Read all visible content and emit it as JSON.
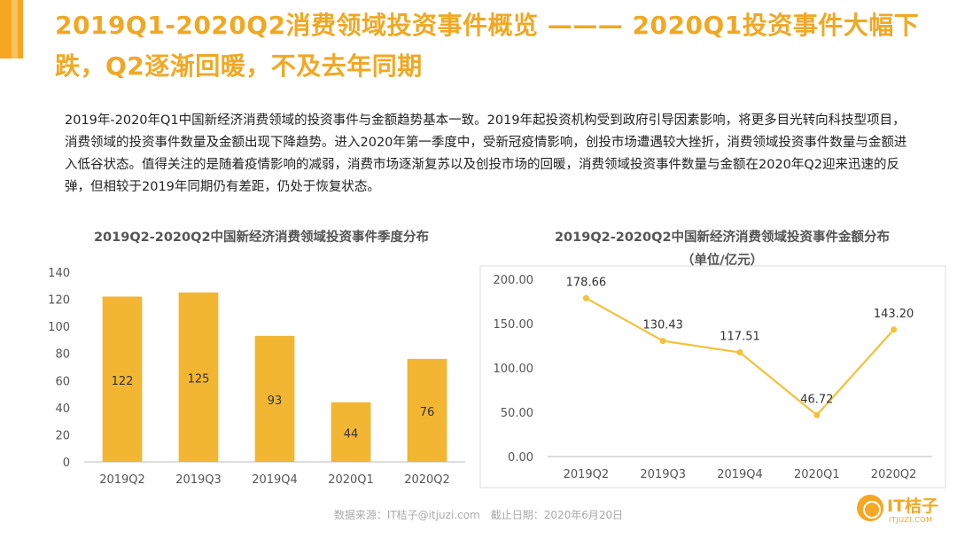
{
  "header": {
    "title": "2019Q1-2020Q2消费领域投资事件概览 ——— 2020Q1投资事件大幅下跌，Q2逐渐回暖，不及去年同期"
  },
  "description": "2019年-2020年Q1中国新经济消费领域的投资事件与金额趋势基本一致。2019年起投资机构受到政府引导因素影响，将更多目光转向科技型项目，消费领域的投资事件数量及金额出现下降趋势。进入2020年第一季度中，受新冠疫情影响，创投市场遭遇较大挫折，消费领域投资事件数量与金额进入低谷状态。值得关注的是随着疫情影响的减弱，消费市场逐渐复苏以及创投市场的回暖，消费领域投资事件数量与金额在2020年Q2迎来迅速的反弹，但相较于2019年同期仍有差距，仍处于恢复状态。",
  "chart_data": [
    {
      "type": "bar",
      "title": "2019Q2-2020Q2中国新经济消费领域投资事件季度分布",
      "categories": [
        "2019Q2",
        "2019Q3",
        "2019Q4",
        "2020Q1",
        "2020Q2"
      ],
      "values": [
        122,
        125,
        93,
        44,
        76
      ],
      "ylim": [
        0,
        140
      ],
      "yticks": [
        "0",
        "20",
        "40",
        "60",
        "80",
        "100",
        "120",
        "140"
      ],
      "grid": false,
      "bar_color": "#f2b632"
    },
    {
      "type": "line",
      "title": "2019Q2-2020Q2中国新经济消费领域投资事件金额分布",
      "subtitle": "（单位/亿元）",
      "categories": [
        "2019Q2",
        "2019Q3",
        "2019Q4",
        "2020Q1",
        "2020Q2"
      ],
      "values": [
        178.66,
        130.43,
        117.51,
        46.72,
        143.2
      ],
      "value_labels": [
        "178.66",
        "130.43",
        "117.51",
        "46.72",
        "143.20"
      ],
      "ylim": [
        0,
        200
      ],
      "yticks": [
        "0.00",
        "50.00",
        "100.00",
        "150.00",
        "200.00"
      ],
      "grid": false,
      "border": true,
      "line_color": "#f2c23a"
    }
  ],
  "footer": {
    "source": "数据来源：IT桔子@itjuzi.com　截止日期：2020年6月20日"
  },
  "logo": {
    "name": "IT桔子",
    "url": "ITJUZI.COM"
  },
  "colors": {
    "accent": "#f0a824",
    "bar": "#f2b632",
    "line": "#f2c23a"
  }
}
